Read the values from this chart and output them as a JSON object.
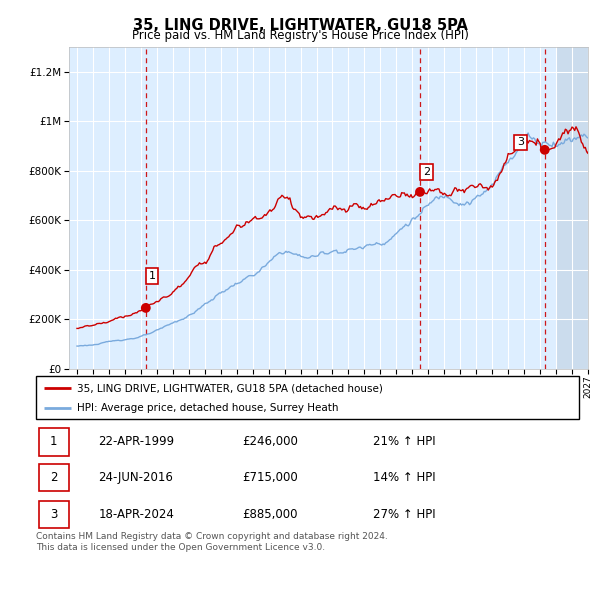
{
  "title": "35, LING DRIVE, LIGHTWATER, GU18 5PA",
  "subtitle": "Price paid vs. HM Land Registry's House Price Index (HPI)",
  "ylim": [
    0,
    1300000
  ],
  "xlim_start": 1994.5,
  "xlim_end": 2027.0,
  "sale_dates": [
    1999.31,
    2016.48,
    2024.29
  ],
  "sale_prices": [
    246000,
    715000,
    885000
  ],
  "sale_labels": [
    "1",
    "2",
    "3"
  ],
  "legend_line1": "35, LING DRIVE, LIGHTWATER, GU18 5PA (detached house)",
  "legend_line2": "HPI: Average price, detached house, Surrey Heath",
  "table_data": [
    [
      "1",
      "22-APR-1999",
      "£246,000",
      "21% ↑ HPI"
    ],
    [
      "2",
      "24-JUN-2016",
      "£715,000",
      "14% ↑ HPI"
    ],
    [
      "3",
      "18-APR-2024",
      "£885,000",
      "27% ↑ HPI"
    ]
  ],
  "footnote": "Contains HM Land Registry data © Crown copyright and database right 2024.\nThis data is licensed under the Open Government Licence v3.0.",
  "hpi_color": "#7aaadd",
  "sale_line_color": "#cc0000",
  "vline_color": "#cc0000",
  "background_color": "#ddeeff",
  "hatch_color": "#aabbcc"
}
